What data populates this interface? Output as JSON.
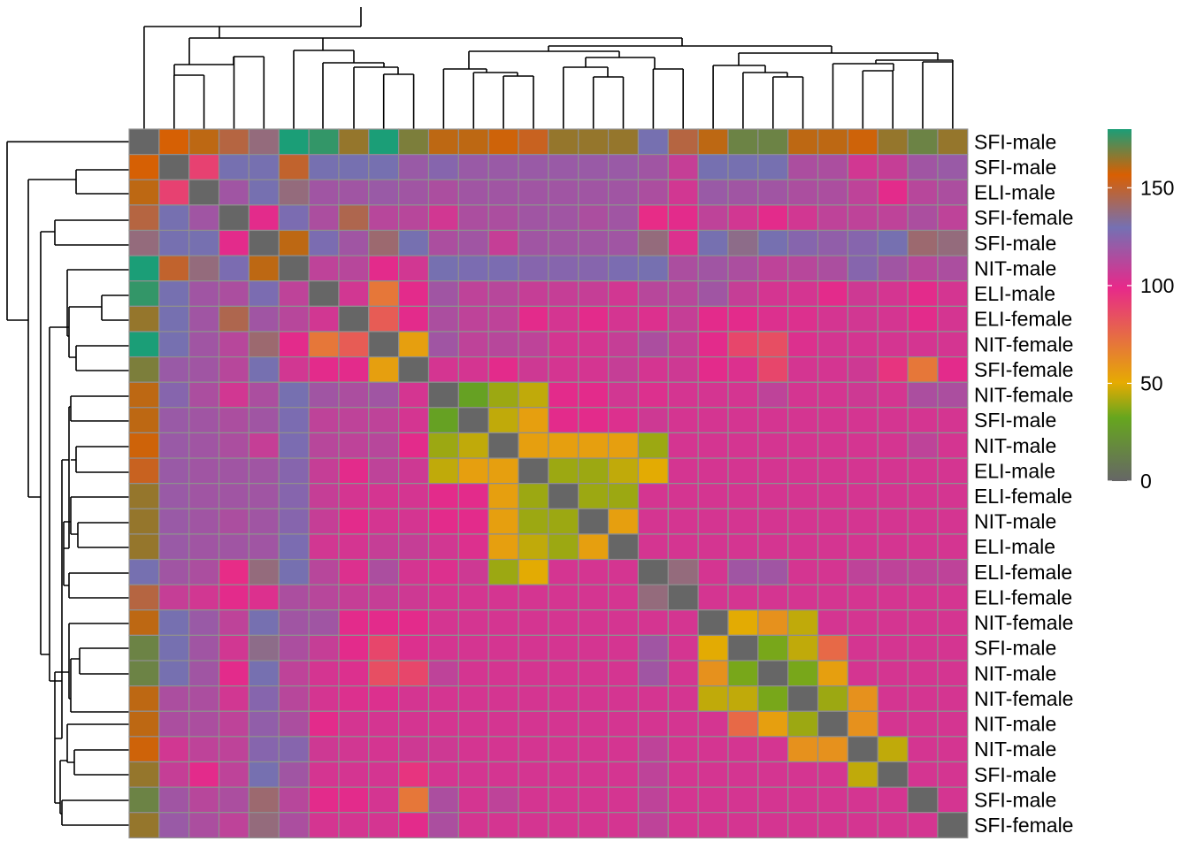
{
  "chart_data": {
    "type": "heatmap",
    "title": "",
    "row_labels": [
      "SFI-male",
      "SFI-male",
      "ELI-male",
      "SFI-female",
      "SFI-male",
      "NIT-male",
      "ELI-male",
      "ELI-female",
      "NIT-female",
      "SFI-female",
      "NIT-female",
      "SFI-male",
      "NIT-male",
      "ELI-male",
      "ELI-female",
      "NIT-male",
      "ELI-male",
      "ELI-female",
      "ELI-female",
      "NIT-female",
      "SFI-male",
      "NIT-male",
      "NIT-female",
      "NIT-male",
      "NIT-male",
      "SFI-male",
      "SFI-male",
      "SFI-female"
    ],
    "legend": {
      "ticks": [
        0,
        50,
        100,
        150
      ],
      "range": [
        0,
        180
      ],
      "colors": [
        "#666666",
        "#66A61E",
        "#E6AB02",
        "#E7298A",
        "#7570B3",
        "#D95F02",
        "#1B9E77"
      ],
      "color_positions": [
        0,
        0.18,
        0.28,
        0.55,
        0.72,
        0.87,
        1.0
      ]
    },
    "values": [
      [
        0,
        157,
        160,
        147,
        138,
        180,
        177,
        165,
        180,
        168,
        160,
        160,
        158,
        152,
        165,
        165,
        165,
        130,
        147,
        160,
        170,
        170,
        160,
        160,
        158,
        165,
        170,
        165
      ],
      [
        157,
        0,
        90,
        130,
        130,
        150,
        130,
        130,
        130,
        120,
        125,
        120,
        120,
        120,
        120,
        120,
        120,
        118,
        108,
        130,
        130,
        130,
        115,
        115,
        105,
        108,
        118,
        120
      ],
      [
        160,
        90,
        0,
        118,
        130,
        138,
        118,
        118,
        120,
        118,
        115,
        118,
        118,
        118,
        118,
        118,
        118,
        115,
        105,
        120,
        118,
        118,
        115,
        115,
        110,
        100,
        112,
        115
      ],
      [
        147,
        130,
        118,
        0,
        100,
        128,
        115,
        145,
        112,
        112,
        105,
        115,
        115,
        118,
        118,
        115,
        118,
        98,
        100,
        110,
        105,
        100,
        105,
        110,
        110,
        110,
        115,
        110
      ],
      [
        138,
        130,
        130,
        100,
        0,
        160,
        128,
        118,
        140,
        130,
        115,
        118,
        108,
        118,
        118,
        118,
        118,
        138,
        102,
        130,
        136,
        130,
        125,
        122,
        125,
        130,
        140,
        138
      ],
      [
        180,
        150,
        138,
        128,
        160,
        0,
        110,
        112,
        100,
        105,
        130,
        128,
        128,
        125,
        125,
        125,
        128,
        130,
        115,
        118,
        115,
        110,
        112,
        115,
        125,
        118,
        112,
        115
      ],
      [
        177,
        130,
        118,
        115,
        128,
        110,
        0,
        105,
        70,
        100,
        118,
        110,
        112,
        108,
        108,
        108,
        105,
        112,
        112,
        118,
        108,
        104,
        104,
        100,
        106,
        104,
        100,
        104
      ],
      [
        165,
        130,
        118,
        145,
        118,
        112,
        105,
        0,
        80,
        100,
        115,
        110,
        110,
        100,
        104,
        100,
        104,
        102,
        108,
        100,
        100,
        102,
        102,
        104,
        105,
        104,
        100,
        104
      ],
      [
        180,
        130,
        118,
        112,
        140,
        100,
        70,
        80,
        0,
        55,
        118,
        110,
        112,
        110,
        104,
        104,
        108,
        115,
        108,
        100,
        88,
        85,
        102,
        104,
        104,
        104,
        104,
        104
      ],
      [
        168,
        120,
        118,
        112,
        130,
        105,
        100,
        100,
        55,
        0,
        104,
        104,
        100,
        106,
        104,
        104,
        108,
        104,
        106,
        100,
        102,
        88,
        104,
        104,
        106,
        95,
        70,
        100
      ],
      [
        160,
        125,
        115,
        105,
        115,
        130,
        118,
        115,
        118,
        104,
        0,
        30,
        40,
        45,
        100,
        100,
        105,
        102,
        104,
        104,
        104,
        110,
        104,
        104,
        106,
        104,
        115,
        115
      ],
      [
        160,
        120,
        118,
        115,
        118,
        128,
        110,
        110,
        110,
        104,
        30,
        0,
        45,
        55,
        100,
        100,
        102,
        106,
        104,
        104,
        104,
        104,
        104,
        104,
        104,
        104,
        104,
        104
      ],
      [
        158,
        120,
        118,
        115,
        108,
        128,
        112,
        110,
        112,
        100,
        40,
        45,
        0,
        55,
        55,
        55,
        55,
        40,
        104,
        104,
        104,
        104,
        104,
        104,
        104,
        104,
        110,
        104
      ],
      [
        152,
        120,
        118,
        118,
        118,
        125,
        108,
        100,
        110,
        106,
        45,
        55,
        55,
        0,
        40,
        40,
        45,
        50,
        104,
        104,
        104,
        104,
        104,
        104,
        104,
        104,
        104,
        104
      ],
      [
        165,
        120,
        118,
        118,
        118,
        125,
        108,
        104,
        104,
        104,
        100,
        100,
        55,
        40,
        0,
        40,
        40,
        104,
        104,
        104,
        104,
        104,
        104,
        104,
        104,
        104,
        104,
        104
      ],
      [
        165,
        120,
        118,
        115,
        118,
        125,
        108,
        100,
        104,
        104,
        100,
        100,
        55,
        40,
        40,
        0,
        55,
        104,
        104,
        104,
        104,
        104,
        104,
        104,
        104,
        104,
        104,
        104
      ],
      [
        165,
        120,
        118,
        118,
        118,
        128,
        105,
        104,
        108,
        108,
        105,
        102,
        55,
        45,
        40,
        55,
        0,
        104,
        104,
        104,
        104,
        104,
        104,
        104,
        104,
        104,
        104,
        104
      ],
      [
        130,
        118,
        115,
        98,
        138,
        130,
        112,
        102,
        115,
        104,
        102,
        106,
        40,
        50,
        104,
        104,
        104,
        0,
        138,
        104,
        118,
        118,
        104,
        104,
        110,
        110,
        110,
        110
      ],
      [
        147,
        108,
        105,
        100,
        102,
        115,
        112,
        108,
        108,
        106,
        104,
        104,
        104,
        104,
        104,
        104,
        104,
        138,
        0,
        104,
        104,
        104,
        104,
        104,
        104,
        104,
        104,
        104
      ],
      [
        160,
        130,
        120,
        110,
        130,
        118,
        118,
        100,
        100,
        100,
        104,
        104,
        104,
        104,
        104,
        104,
        104,
        104,
        104,
        0,
        50,
        60,
        45,
        104,
        104,
        104,
        104,
        104
      ],
      [
        170,
        130,
        118,
        105,
        136,
        115,
        108,
        100,
        88,
        102,
        104,
        104,
        104,
        104,
        104,
        104,
        104,
        118,
        104,
        50,
        0,
        35,
        45,
        75,
        104,
        104,
        104,
        104
      ],
      [
        170,
        130,
        118,
        100,
        130,
        110,
        104,
        102,
        85,
        88,
        110,
        104,
        104,
        104,
        104,
        104,
        104,
        118,
        104,
        60,
        35,
        0,
        35,
        55,
        104,
        104,
        104,
        104
      ],
      [
        160,
        115,
        115,
        105,
        125,
        112,
        104,
        102,
        102,
        104,
        104,
        104,
        104,
        104,
        104,
        104,
        104,
        104,
        104,
        45,
        45,
        35,
        0,
        40,
        60,
        104,
        104,
        104
      ],
      [
        160,
        115,
        115,
        110,
        122,
        115,
        100,
        104,
        104,
        104,
        104,
        104,
        104,
        104,
        104,
        104,
        104,
        104,
        104,
        104,
        75,
        55,
        40,
        0,
        60,
        104,
        104,
        104
      ],
      [
        158,
        105,
        110,
        110,
        125,
        125,
        106,
        105,
        104,
        106,
        106,
        104,
        104,
        104,
        104,
        104,
        104,
        110,
        104,
        104,
        104,
        104,
        60,
        60,
        0,
        45,
        104,
        104
      ],
      [
        165,
        108,
        100,
        110,
        130,
        118,
        104,
        104,
        104,
        95,
        104,
        104,
        104,
        104,
        104,
        104,
        104,
        110,
        104,
        104,
        104,
        104,
        104,
        104,
        45,
        0,
        104,
        104
      ],
      [
        170,
        118,
        112,
        115,
        140,
        112,
        100,
        100,
        104,
        70,
        115,
        104,
        110,
        104,
        104,
        104,
        104,
        110,
        104,
        104,
        104,
        104,
        104,
        104,
        104,
        104,
        0,
        104
      ],
      [
        165,
        120,
        115,
        110,
        138,
        115,
        104,
        104,
        104,
        100,
        115,
        104,
        104,
        104,
        104,
        104,
        104,
        110,
        104,
        104,
        104,
        104,
        104,
        104,
        104,
        104,
        104,
        0
      ]
    ]
  }
}
